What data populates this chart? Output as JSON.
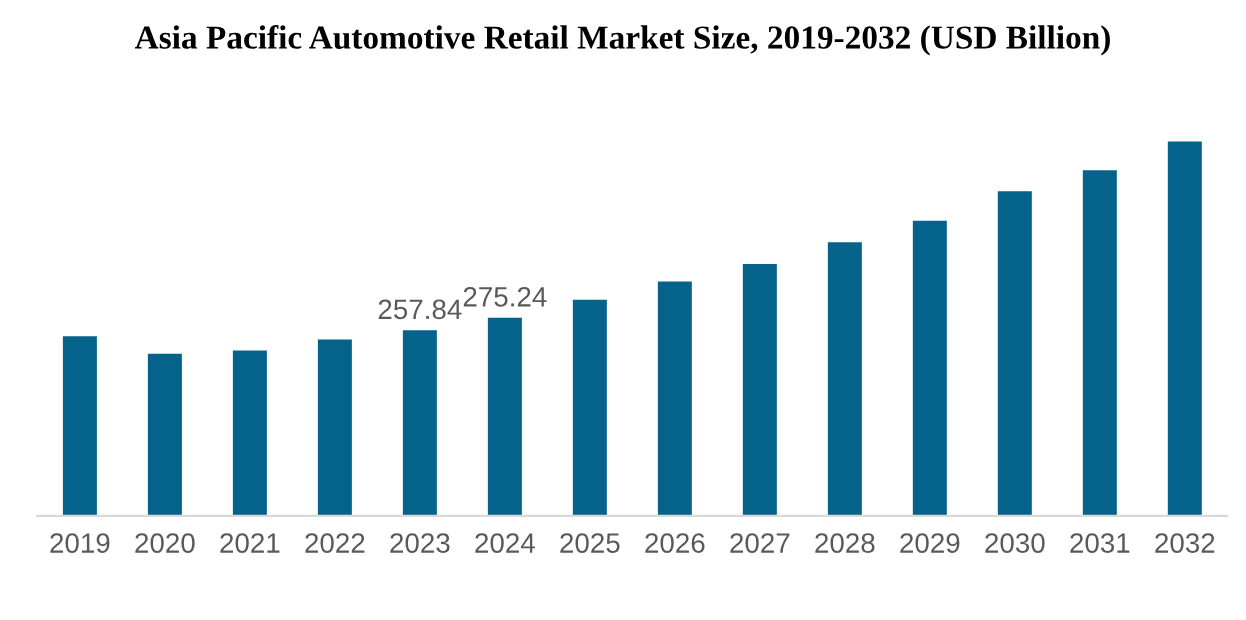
{
  "chart_data": {
    "type": "bar",
    "title": "Asia Pacific Automotive Retail Market Size, 2019-2032 (USD Billion)",
    "categories": [
      "2019",
      "2020",
      "2021",
      "2022",
      "2023",
      "2024",
      "2025",
      "2026",
      "2027",
      "2028",
      "2029",
      "2030",
      "2031",
      "2032"
    ],
    "values": [
      249.6,
      225,
      229.6,
      245,
      257.84,
      275.24,
      300,
      325.6,
      350,
      380,
      410,
      451,
      480,
      520
    ],
    "value_labels": [
      null,
      null,
      null,
      null,
      "257.84",
      "275.24",
      null,
      null,
      null,
      null,
      null,
      null,
      null,
      null
    ],
    "color": "#05628a",
    "grid": false,
    "legend": false
  }
}
